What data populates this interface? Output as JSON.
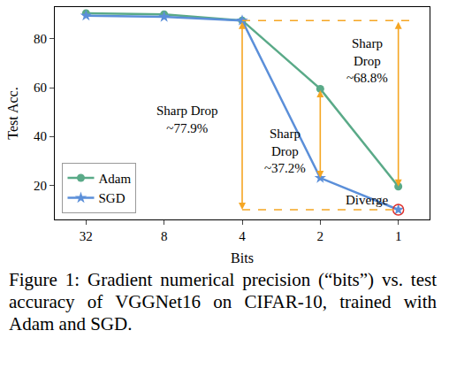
{
  "chart_data": {
    "type": "line",
    "x_label": "Bits",
    "y_label": "Test Acc.",
    "categories": [
      "32",
      "8",
      "4",
      "2",
      "1"
    ],
    "series": [
      {
        "name": "Adam",
        "color": "#5aaa88",
        "marker": "circle",
        "values": [
          90.5,
          90,
          87.5,
          59.5,
          19.5
        ]
      },
      {
        "name": "SGD",
        "color": "#5b8fd9",
        "marker": "star",
        "values": [
          89.5,
          89,
          87.5,
          23,
          10
        ]
      }
    ],
    "ylim": [
      6,
      93
    ],
    "yticks": [
      20,
      40,
      60,
      80
    ],
    "grid": false,
    "legend": "lower left",
    "annotations": [
      [
        "Sharp Drop",
        "~77.9%"
      ],
      [
        "Sharp",
        "Drop",
        "~37.2%"
      ],
      [
        "Sharp",
        "Drop",
        "~68.8%"
      ],
      [
        "Diverge"
      ]
    ]
  },
  "caption": "Figure 1: Gradient numerical precision (“bits”) vs. test accuracy of VGGNet16 on CIFAR-10, trained with Adam and SGD."
}
